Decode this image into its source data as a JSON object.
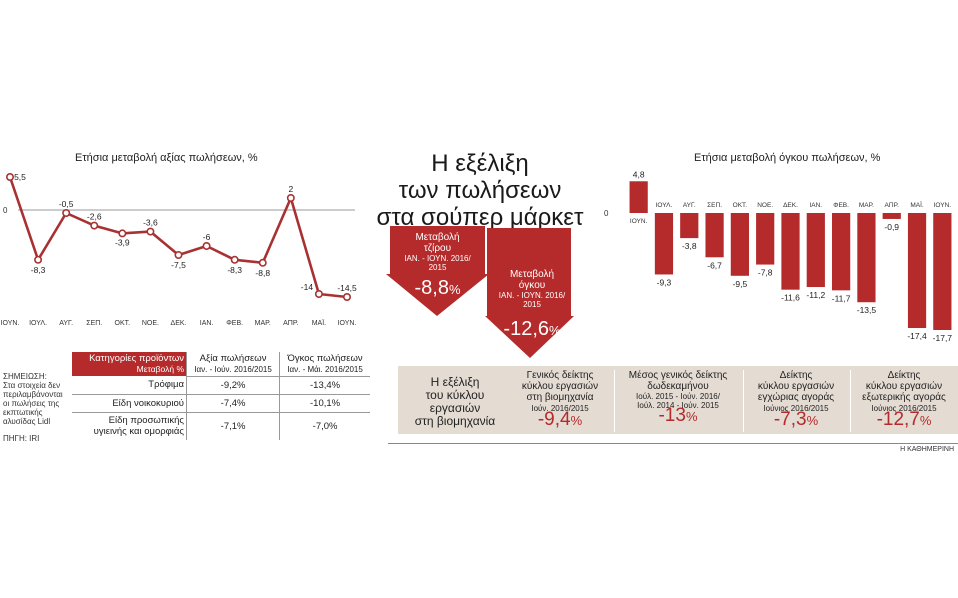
{
  "main_title": [
    "Η εξέλιξη",
    "των πωλήσεων",
    "στα σούπερ μάρκετ"
  ],
  "left_chart_title": "Ετήσια μεταβολή αξίας πωλήσεων, %",
  "right_chart_title": "Ετήσια μεταβολή όγκου πωλήσεων, %",
  "arrow_turnover": {
    "label1": "Μεταβολή",
    "label2": "τζίρου",
    "period1": "ΙΑΝ. - ΙΟΥΝ. 2016/",
    "period2": "2015",
    "value": "-8,8",
    "pct": "%"
  },
  "arrow_volume": {
    "label1": "Μεταβολή",
    "label2": "όγκου",
    "period1": "ΙΑΝ. - ΙΟΥΝ. 2016/",
    "period2": "2015",
    "value": "-12,6",
    "pct": "%"
  },
  "note": {
    "head": "ΣΗΜΕΙΩΣΗ:",
    "l1": "Στα στοιχεία δεν",
    "l2": "περιλαμβάνονται",
    "l3": "οι πωλήσεις της",
    "l4": "εκπτωτικής",
    "l5": "αλυσίδας Lidl"
  },
  "source": "ΠΗΓΗ: IRI",
  "table": {
    "h1a": "Κατηγορίες προϊόντων",
    "h1b": "Μεταβολή %",
    "h2a": "Αξία πωλήσεων",
    "h2b": "Ιαν. - Ιούν. 2016/2015",
    "h3a": "Όγκος πωλήσεων",
    "h3b": "Ιαν. - Μάι. 2016/2015",
    "rows": [
      {
        "cat": "Τρόφιμα",
        "v1": "-9,2%",
        "v2": "-13,4%"
      },
      {
        "cat": "Είδη νοικοκυριού",
        "v1": "-7,4%",
        "v2": "-10,1%"
      },
      {
        "cat": "Είδη προσωπικής υγιεινής και ομορφιάς",
        "v1": "-7,1%",
        "v2": "-7,0%"
      }
    ]
  },
  "band": {
    "lead": [
      "Η εξέλιξη",
      "του κύκλου",
      "εργασιών",
      "στη βιομηχανία"
    ],
    "cards": [
      {
        "t1": "Γενικός δείκτης",
        "t2": "κύκλου εργασιών",
        "t3": "στη βιομηχανία",
        "p1": "Ιούν. 2016/2015",
        "p2": "",
        "value": "-9,4",
        "pct": "%"
      },
      {
        "t1": "Μέσος γενικός δείκτης",
        "t2": "δωδεκαμήνου",
        "t3": "",
        "p1": "Ιούλ. 2015 - Ιούν. 2016/",
        "p2": "Ιούλ. 2014 - Ιούν. 2015",
        "value": "-13",
        "pct": "%"
      },
      {
        "t1": "Δείκτης",
        "t2": "κύκλου εργασιών",
        "t3": "εγχώριας αγοράς",
        "p1": "Ιούνιος 2016/2015",
        "p2": "",
        "value": "-7,3",
        "pct": "%"
      },
      {
        "t1": "Δείκτης",
        "t2": "κύκλου εργασιών",
        "t3": "εξωτερικής αγοράς",
        "p1": "Ιούνιος 2016/2015",
        "p2": "",
        "value": "-12,7",
        "pct": "%"
      }
    ]
  },
  "credit": "Η ΚΑΘΗΜΕΡΙΝΗ",
  "colors": {
    "accent": "#b52b2b",
    "band": "#e4dbd3",
    "line": "#a83232"
  },
  "chart_data": [
    {
      "type": "line",
      "title": "Ετήσια μεταβολή αξίας πωλήσεων, %",
      "categories": [
        "ΙΟΥΝ.",
        "ΙΟΥΛ.",
        "ΑΥΓ.",
        "ΣΕΠ.",
        "ΟΚΤ.",
        "ΝΟΕ.",
        "ΔΕΚ.",
        "ΙΑΝ.",
        "ΦΕΒ.",
        "ΜΑΡ.",
        "ΑΠΡ.",
        "ΜΑΪ.",
        "ΙΟΥΝ."
      ],
      "values": [
        5.5,
        -8.3,
        -0.5,
        -2.6,
        -3.9,
        -3.6,
        -7.5,
        -6,
        -8.3,
        -8.8,
        2,
        -14,
        -14.5
      ],
      "labels": [
        "5,5",
        "-8,3",
        "-0,5",
        "-2,6",
        "-3,9",
        "-3,6",
        "-7,5",
        "-6",
        "-8,3",
        "-8,8",
        "2",
        "-14",
        "-14,5"
      ],
      "zero_label": "0",
      "ylim": [
        -16,
        6
      ]
    },
    {
      "type": "bar",
      "title": "Ετήσια μεταβολή όγκου πωλήσεων, %",
      "categories": [
        "ΙΟΥΝ.",
        "ΙΟΥΛ.",
        "ΑΥΓ.",
        "ΣΕΠ.",
        "ΟΚΤ.",
        "ΝΟΕ.",
        "ΔΕΚ.",
        "ΙΑΝ.",
        "ΦΕΒ.",
        "ΜΑΡ.",
        "ΑΠΡ.",
        "ΜΑΪ.",
        "ΙΟΥΝ."
      ],
      "values": [
        4.8,
        -9.3,
        -3.8,
        -6.7,
        -9.5,
        -7.8,
        -11.6,
        -11.2,
        -11.7,
        -13.5,
        -0.9,
        -17.4,
        -17.7
      ],
      "labels": [
        "4,8",
        "-9,3",
        "-3,8",
        "-6,7",
        "-9,5",
        "-7,8",
        "-11,6",
        "-11,2",
        "-11,7",
        "-13,5",
        "-0,9",
        "-17,4",
        "-17,7"
      ],
      "zero_label": "0",
      "ylim": [
        -18,
        5
      ]
    }
  ]
}
